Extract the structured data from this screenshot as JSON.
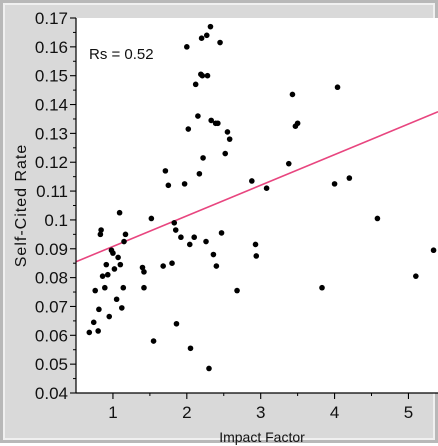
{
  "chart_data": {
    "type": "scatter",
    "title": "",
    "xlabel": "Impact Factor",
    "ylabel": "Self-Cited Rate",
    "annotation": "Rs = 0.52",
    "xlim": [
      0.5,
      5.4
    ],
    "ylim": [
      0.04,
      0.17
    ],
    "xticks": [
      "1",
      "2",
      "3",
      "4",
      "5"
    ],
    "xtick_values": [
      1,
      2,
      3,
      4,
      5
    ],
    "yticks": [
      "0.04",
      "0.05",
      "0.06",
      "0.07",
      "0.08",
      "0.09",
      "0.1",
      "0.11",
      "0.12",
      "0.13",
      "0.14",
      "0.15",
      "0.16",
      "0.17"
    ],
    "ytick_values": [
      0.04,
      0.05,
      0.06,
      0.07,
      0.08,
      0.09,
      0.1,
      0.11,
      0.12,
      0.13,
      0.14,
      0.15,
      0.16,
      0.17
    ],
    "grid": false,
    "fit_line": {
      "color": "#e8457f",
      "points": [
        [
          0.5,
          0.0855
        ],
        [
          5.4,
          0.1375
        ]
      ]
    },
    "point_color": "#000000",
    "series": [
      {
        "values": [
          {
            "x": 0.68,
            "y": 0.061
          },
          {
            "x": 0.74,
            "y": 0.0645
          },
          {
            "x": 0.76,
            "y": 0.0755
          },
          {
            "x": 0.8,
            "y": 0.0615
          },
          {
            "x": 0.81,
            "y": 0.069
          },
          {
            "x": 0.83,
            "y": 0.095
          },
          {
            "x": 0.84,
            "y": 0.0965
          },
          {
            "x": 0.86,
            "y": 0.0805
          },
          {
            "x": 0.89,
            "y": 0.0765
          },
          {
            "x": 0.91,
            "y": 0.0845
          },
          {
            "x": 0.93,
            "y": 0.081
          },
          {
            "x": 0.95,
            "y": 0.0665
          },
          {
            "x": 0.98,
            "y": 0.0895
          },
          {
            "x": 1.0,
            "y": 0.0885
          },
          {
            "x": 1.02,
            "y": 0.083
          },
          {
            "x": 1.05,
            "y": 0.0725
          },
          {
            "x": 1.07,
            "y": 0.087
          },
          {
            "x": 1.09,
            "y": 0.1025
          },
          {
            "x": 1.1,
            "y": 0.0845
          },
          {
            "x": 1.12,
            "y": 0.0695
          },
          {
            "x": 1.14,
            "y": 0.0765
          },
          {
            "x": 1.15,
            "y": 0.0925
          },
          {
            "x": 1.17,
            "y": 0.095
          },
          {
            "x": 1.4,
            "y": 0.0835
          },
          {
            "x": 1.42,
            "y": 0.0765
          },
          {
            "x": 1.42,
            "y": 0.082
          },
          {
            "x": 1.52,
            "y": 0.1005
          },
          {
            "x": 1.55,
            "y": 0.058
          },
          {
            "x": 1.68,
            "y": 0.084
          },
          {
            "x": 1.71,
            "y": 0.117
          },
          {
            "x": 1.75,
            "y": 0.112
          },
          {
            "x": 1.8,
            "y": 0.085
          },
          {
            "x": 1.83,
            "y": 0.099
          },
          {
            "x": 1.85,
            "y": 0.0965
          },
          {
            "x": 1.86,
            "y": 0.064
          },
          {
            "x": 1.92,
            "y": 0.094
          },
          {
            "x": 1.97,
            "y": 0.1125
          },
          {
            "x": 2.0,
            "y": 0.16
          },
          {
            "x": 2.02,
            "y": 0.1315
          },
          {
            "x": 2.04,
            "y": 0.0915
          },
          {
            "x": 2.05,
            "y": 0.0555
          },
          {
            "x": 2.1,
            "y": 0.094
          },
          {
            "x": 2.12,
            "y": 0.147
          },
          {
            "x": 2.15,
            "y": 0.136
          },
          {
            "x": 2.17,
            "y": 0.116
          },
          {
            "x": 2.19,
            "y": 0.1505
          },
          {
            "x": 2.2,
            "y": 0.163
          },
          {
            "x": 2.21,
            "y": 0.15
          },
          {
            "x": 2.22,
            "y": 0.1215
          },
          {
            "x": 2.26,
            "y": 0.0925
          },
          {
            "x": 2.27,
            "y": 0.164
          },
          {
            "x": 2.28,
            "y": 0.15
          },
          {
            "x": 2.3,
            "y": 0.0485
          },
          {
            "x": 2.32,
            "y": 0.167
          },
          {
            "x": 2.33,
            "y": 0.1345
          },
          {
            "x": 2.36,
            "y": 0.088
          },
          {
            "x": 2.39,
            "y": 0.1335
          },
          {
            "x": 2.4,
            "y": 0.084
          },
          {
            "x": 2.42,
            "y": 0.1335
          },
          {
            "x": 2.45,
            "y": 0.1615
          },
          {
            "x": 2.47,
            "y": 0.0955
          },
          {
            "x": 2.52,
            "y": 0.123
          },
          {
            "x": 2.55,
            "y": 0.1305
          },
          {
            "x": 2.58,
            "y": 0.128
          },
          {
            "x": 2.68,
            "y": 0.0755
          },
          {
            "x": 2.88,
            "y": 0.1135
          },
          {
            "x": 2.93,
            "y": 0.0915
          },
          {
            "x": 2.94,
            "y": 0.0875
          },
          {
            "x": 3.08,
            "y": 0.111
          },
          {
            "x": 3.38,
            "y": 0.1195
          },
          {
            "x": 3.43,
            "y": 0.1435
          },
          {
            "x": 3.47,
            "y": 0.1325
          },
          {
            "x": 3.5,
            "y": 0.1335
          },
          {
            "x": 3.83,
            "y": 0.0765
          },
          {
            "x": 4.0,
            "y": 0.1125
          },
          {
            "x": 4.04,
            "y": 0.146
          },
          {
            "x": 4.2,
            "y": 0.1145
          },
          {
            "x": 4.58,
            "y": 0.1005
          },
          {
            "x": 5.1,
            "y": 0.0805
          },
          {
            "x": 5.34,
            "y": 0.0895
          }
        ]
      }
    ]
  }
}
